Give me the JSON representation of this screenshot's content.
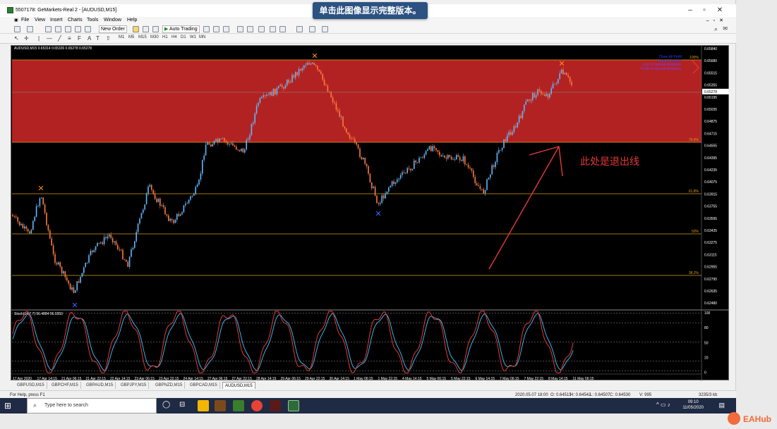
{
  "window": {
    "title": "5507178: GeMarkets-Real 2 - [AUDUSD,M15]"
  },
  "banner": "单击此图像显示完整版本。",
  "menu": [
    "File",
    "View",
    "Insert",
    "Charts",
    "Tools",
    "Window",
    "Help"
  ],
  "toolbar": {
    "new_order": "New Order",
    "auto_trading": "Auto Trading",
    "timeframes": [
      "M1",
      "M5",
      "M15",
      "M30",
      "H1",
      "H4",
      "D1",
      "W1",
      "MN"
    ]
  },
  "chart": {
    "header": "AUDUSD,M15  0.65314 0.65326 0.65278 0.65278",
    "price_labels": [
      "0.65840",
      "0.65680",
      "0.65515",
      "0.65355",
      "0.65195",
      "0.65035",
      "0.64875",
      "0.64715",
      "0.64555",
      "0.64395",
      "0.64235",
      "0.64075",
      "0.63915",
      "0.63755",
      "0.63595",
      "0.63435",
      "0.63275",
      "0.63115",
      "0.62955",
      "0.62795",
      "0.62635",
      "0.62480"
    ],
    "current_price": "0.65278",
    "fib_labels": {
      "f100": "100%",
      "f764": "76.4%",
      "f618": "61.8%",
      "f50": "50%",
      "f382": "38.2%"
    },
    "info_lines": [
      {
        "text": "Close All Profit",
        "color": "#3a3aff"
      },
      {
        "text": "Opened trades:",
        "color": "#3a3aff"
      },
      {
        "text": "Lots of opened positions:",
        "color": "#7b3cff"
      },
      {
        "text": "Profit of opened positions:",
        "color": "#7b3cff"
      }
    ],
    "annotation": "此处是退出线",
    "stoch_label": "Stoch(14,7,7) 56.4884 56.9353",
    "stoch_levels": [
      "100",
      "80",
      "50",
      "20",
      "0"
    ],
    "time_labels": [
      "17 Apr 2020",
      "17 Apr 14:15",
      "21 Apr 06:15",
      "21 Apr 22:15",
      "22 Apr 14:15",
      "23 Apr 06:15",
      "23 Apr 22:15",
      "24 Apr 14:15",
      "27 Apr 06:15",
      "27 Apr 22:15",
      "28 Apr 14:15",
      "29 Apr 06:15",
      "29 Apr 22:15",
      "30 Apr 14:15",
      "1 May 06:15",
      "1 May 22:15",
      "4 May 14:15",
      "5 May 06:15",
      "5 May 22:15",
      "6 May 14:15",
      "7 May 06:15",
      "7 May 22:15",
      "8 May 14:15",
      "11 May 06:15"
    ]
  },
  "tabs": [
    "GBPUSD,M15",
    "GBPCHF,M15",
    "GBPAUD,M15",
    "GBPJPY,M15",
    "GBPNZD,M15",
    "GBPCAD,M15",
    "AUDUSD,M15"
  ],
  "active_tab": "AUDUSD,M15",
  "status": {
    "help": "For Help, press F1",
    "datetime": "2020.05.07 18:00",
    "open": "O: 0.64515",
    "high": "H: 0.64542",
    "low": "L: 0.64507",
    "close": "C: 0.64530",
    "volume": "V: 995",
    "traffic": "3235/3 kb"
  },
  "taskbar": {
    "search_placeholder": "Type here to search",
    "time": "09:10",
    "date": "11/05/2020"
  },
  "watermark": "EAHub",
  "colors": {
    "zone": "#b22222",
    "fib_line": "#d4a017",
    "bull_candle": "#5fb8ff",
    "bear_candle": "#ff7a3d",
    "stoch_main": "#e53935",
    "stoch_signal": "#40c4ff"
  }
}
